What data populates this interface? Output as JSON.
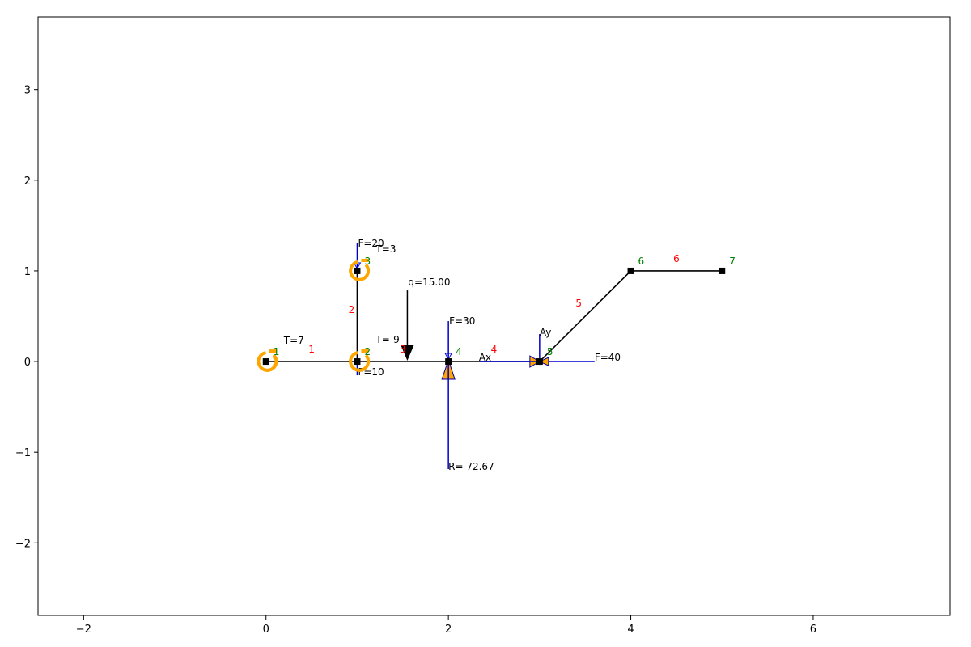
{
  "axes": {
    "xlim": [
      -2.5,
      7.5
    ],
    "ylim": [
      -2.8,
      3.8
    ],
    "xticks": [
      -2,
      0,
      2,
      4,
      6
    ],
    "yticks": [
      -2,
      -1,
      0,
      1,
      2,
      3
    ],
    "xtick_labels": [
      "−2",
      "0",
      "2",
      "4",
      "6"
    ],
    "ytick_labels": [
      "−2",
      "−1",
      "0",
      "1",
      "2",
      "3"
    ],
    "grid": false
  },
  "colors": {
    "element": "#000000",
    "node_label": "#008000",
    "element_label": "#ff0000",
    "load": "#0000cc",
    "support": "#ffa500",
    "text": "#000000"
  },
  "nodes": [
    {
      "id": "1",
      "label": "1",
      "x": 0,
      "y": 0
    },
    {
      "id": "2",
      "label": "2",
      "x": 1,
      "y": 0
    },
    {
      "id": "3",
      "label": "3",
      "x": 1,
      "y": 1
    },
    {
      "id": "4",
      "label": "4",
      "x": 2,
      "y": 0
    },
    {
      "id": "5",
      "label": "5",
      "x": 3,
      "y": 0
    },
    {
      "id": "6",
      "label": "6",
      "x": 4,
      "y": 1
    },
    {
      "id": "7",
      "label": "7",
      "x": 5,
      "y": 1
    }
  ],
  "elements": [
    {
      "id": "1",
      "label": "1",
      "from": [
        0,
        0
      ],
      "to": [
        1,
        0
      ]
    },
    {
      "id": "2",
      "label": "2",
      "from": [
        1,
        0
      ],
      "to": [
        1,
        1
      ]
    },
    {
      "id": "3",
      "label": "3",
      "from": [
        1,
        0
      ],
      "to": [
        2,
        0
      ]
    },
    {
      "id": "4",
      "label": "4",
      "from": [
        2,
        0
      ],
      "to": [
        3,
        0
      ]
    },
    {
      "id": "5",
      "label": "5",
      "from": [
        3,
        0
      ],
      "to": [
        4,
        1
      ]
    },
    {
      "id": "6",
      "label": "6",
      "from": [
        4,
        1
      ],
      "to": [
        5,
        1
      ]
    }
  ],
  "point_loads": [
    {
      "label": "F=20",
      "x": 1,
      "y": 1,
      "dir": "down"
    },
    {
      "label": "F=10",
      "x": 1,
      "y": 0,
      "dir": "up"
    },
    {
      "label": "F=30",
      "x": 2,
      "y": 0,
      "dir": "down"
    },
    {
      "label": "F=40",
      "x": 3,
      "y": 0,
      "dir": "left"
    }
  ],
  "moments": [
    {
      "label": "T=7",
      "x": 0,
      "y": 0
    },
    {
      "label": "T=3",
      "x": 1,
      "y": 1
    },
    {
      "label": "T=-9",
      "x": 1,
      "y": 0
    }
  ],
  "distributed_load": {
    "label": "q=15.00",
    "x": 1.55,
    "y": 0
  },
  "supports": [
    {
      "type": "fixed-vertical",
      "x": 2,
      "y": 0
    },
    {
      "type": "pinned",
      "x": 3,
      "y": 0
    }
  ],
  "reactions": [
    {
      "label": "R= 72.67",
      "x": 2,
      "y": 0
    },
    {
      "label": "Ax",
      "x": 3,
      "y": 0
    },
    {
      "label": "Ay",
      "x": 3,
      "y": 0
    }
  ]
}
